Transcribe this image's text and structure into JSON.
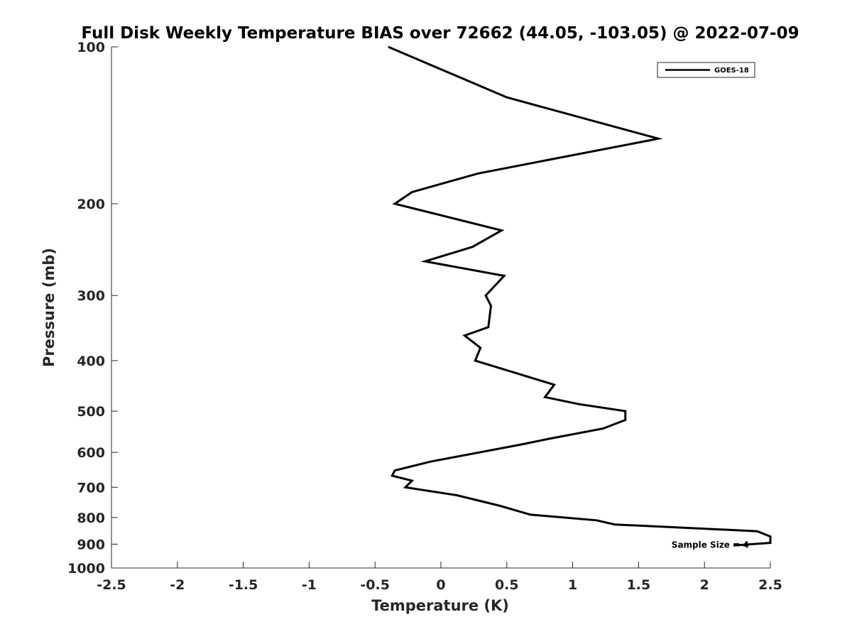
{
  "chart_data": {
    "type": "line",
    "title": "Full Disk Weekly Temperature BIAS over 72662 (44.05, -103.05) @ 2022-07-09",
    "xlabel": "Temperature (K)",
    "ylabel": "Pressure (mb)",
    "xlim": [
      -2.5,
      2.5
    ],
    "ylim": [
      100,
      1000
    ],
    "y_scale": "log",
    "y_reversed": true,
    "grid": false,
    "xticks": [
      -2.5,
      -2,
      -1.5,
      -1,
      -0.5,
      0,
      0.5,
      1,
      1.5,
      2,
      2.5
    ],
    "xtick_labels": [
      "-2.5",
      "-2",
      "-1.5",
      "-1",
      "-0.5",
      "0",
      "0.5",
      "1",
      "1.5",
      "2",
      "2.5"
    ],
    "yticks": [
      100,
      200,
      300,
      400,
      500,
      600,
      700,
      800,
      900,
      1000
    ],
    "ytick_labels": [
      "100",
      "200",
      "300",
      "400",
      "500",
      "600",
      "700",
      "800",
      "900",
      "1000"
    ],
    "legend_position": "top-right",
    "series": [
      {
        "name": "GOES-18",
        "color": "#000000",
        "points": [
          {
            "x": -0.4,
            "y": 100
          },
          {
            "x": 0.5,
            "y": 125
          },
          {
            "x": 1.65,
            "y": 150
          },
          {
            "x": 0.28,
            "y": 175
          },
          {
            "x": -0.22,
            "y": 190
          },
          {
            "x": -0.35,
            "y": 200
          },
          {
            "x": 0.46,
            "y": 225
          },
          {
            "x": 0.24,
            "y": 242
          },
          {
            "x": -0.12,
            "y": 258
          },
          {
            "x": 0.48,
            "y": 275
          },
          {
            "x": 0.34,
            "y": 300
          },
          {
            "x": 0.38,
            "y": 314
          },
          {
            "x": 0.36,
            "y": 345
          },
          {
            "x": 0.18,
            "y": 358
          },
          {
            "x": 0.3,
            "y": 378
          },
          {
            "x": 0.26,
            "y": 400
          },
          {
            "x": 0.86,
            "y": 445
          },
          {
            "x": 0.79,
            "y": 470
          },
          {
            "x": 1.05,
            "y": 485
          },
          {
            "x": 1.4,
            "y": 500
          },
          {
            "x": 1.4,
            "y": 520
          },
          {
            "x": 1.23,
            "y": 540
          },
          {
            "x": 0.82,
            "y": 565
          },
          {
            "x": 0.6,
            "y": 580
          },
          {
            "x": -0.08,
            "y": 625
          },
          {
            "x": -0.35,
            "y": 650
          },
          {
            "x": -0.37,
            "y": 665
          },
          {
            "x": -0.22,
            "y": 680
          },
          {
            "x": -0.27,
            "y": 700
          },
          {
            "x": 0.12,
            "y": 725
          },
          {
            "x": 0.45,
            "y": 760
          },
          {
            "x": 0.68,
            "y": 790
          },
          {
            "x": 1.18,
            "y": 810
          },
          {
            "x": 1.32,
            "y": 825
          },
          {
            "x": 2.4,
            "y": 850
          },
          {
            "x": 2.5,
            "y": 870
          },
          {
            "x": 2.5,
            "y": 895
          },
          {
            "x": 2.22,
            "y": 905
          }
        ]
      }
    ],
    "annotations": [
      {
        "text": "Sample Size = 4",
        "x": 1.75,
        "y": 900
      }
    ]
  }
}
